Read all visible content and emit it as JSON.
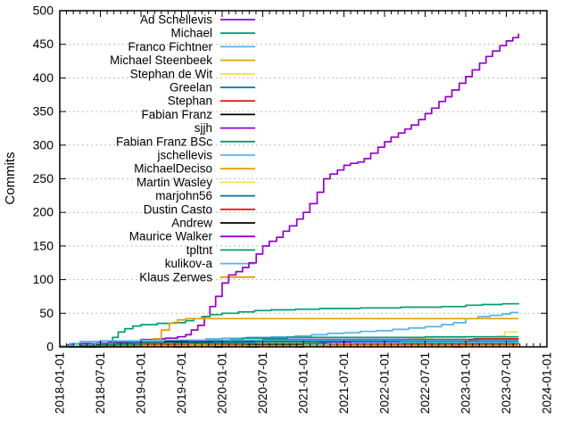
{
  "figure": {
    "background": "#ffffff",
    "frame_color": "#000000",
    "grid_color": "#bdbdbd"
  },
  "chart_data": {
    "type": "line",
    "style": "cumulative-commits-step-lines",
    "title": "",
    "xlabel": "",
    "ylabel": "Commits",
    "ylim": [
      0,
      500
    ],
    "ytick_labels": [
      "0",
      "50",
      "100",
      "150",
      "200",
      "250",
      "300",
      "350",
      "400",
      "450",
      "500"
    ],
    "ytick_values": [
      0,
      50,
      100,
      150,
      200,
      250,
      300,
      350,
      400,
      450,
      500
    ],
    "xlim_years": [
      2018.0,
      2024.0
    ],
    "xtick_labels": [
      "2018-01-01",
      "2018-07-01",
      "2019-01-01",
      "2019-07-01",
      "2020-01-01",
      "2020-07-01",
      "2021-01-01",
      "2021-07-01",
      "2022-01-01",
      "2022-07-01",
      "2023-01-01",
      "2023-07-01",
      "2024-01-01"
    ],
    "grid": "horizontal dotted lines at every 50 commits",
    "legend_position": "top-left inside plot, right-aligned labels with line swatches",
    "series": [
      {
        "name": "Ad Schellevis",
        "color": "#9400D3",
        "final_commits": 466,
        "points": [
          [
            2018.0,
            1
          ],
          [
            2018.1,
            3
          ],
          [
            2018.25,
            5
          ],
          [
            2018.45,
            6
          ],
          [
            2018.6,
            7
          ],
          [
            2018.8,
            8
          ],
          [
            2019.0,
            11
          ],
          [
            2019.15,
            12
          ],
          [
            2019.3,
            13
          ],
          [
            2019.45,
            15
          ],
          [
            2019.55,
            18
          ],
          [
            2019.62,
            25
          ],
          [
            2019.7,
            32
          ],
          [
            2019.78,
            45
          ],
          [
            2019.85,
            60
          ],
          [
            2019.92,
            75
          ],
          [
            2020.0,
            95
          ],
          [
            2020.08,
            107
          ],
          [
            2020.17,
            112
          ],
          [
            2020.25,
            118
          ],
          [
            2020.33,
            125
          ],
          [
            2020.42,
            138
          ],
          [
            2020.5,
            150
          ],
          [
            2020.58,
            157
          ],
          [
            2020.67,
            163
          ],
          [
            2020.75,
            172
          ],
          [
            2020.83,
            180
          ],
          [
            2020.92,
            190
          ],
          [
            2021.0,
            200
          ],
          [
            2021.08,
            213
          ],
          [
            2021.17,
            230
          ],
          [
            2021.25,
            250
          ],
          [
            2021.33,
            257
          ],
          [
            2021.42,
            263
          ],
          [
            2021.5,
            270
          ],
          [
            2021.58,
            273
          ],
          [
            2021.67,
            275
          ],
          [
            2021.75,
            280
          ],
          [
            2021.83,
            288
          ],
          [
            2021.92,
            297
          ],
          [
            2022.0,
            305
          ],
          [
            2022.08,
            312
          ],
          [
            2022.17,
            318
          ],
          [
            2022.25,
            324
          ],
          [
            2022.33,
            330
          ],
          [
            2022.42,
            338
          ],
          [
            2022.5,
            347
          ],
          [
            2022.58,
            355
          ],
          [
            2022.67,
            365
          ],
          [
            2022.75,
            372
          ],
          [
            2022.83,
            382
          ],
          [
            2022.92,
            392
          ],
          [
            2023.0,
            402
          ],
          [
            2023.08,
            412
          ],
          [
            2023.17,
            422
          ],
          [
            2023.25,
            432
          ],
          [
            2023.33,
            440
          ],
          [
            2023.42,
            448
          ],
          [
            2023.5,
            455
          ],
          [
            2023.58,
            460
          ],
          [
            2023.65,
            466
          ]
        ]
      },
      {
        "name": "Michael",
        "color": "#009E73",
        "final_commits": 65,
        "points": [
          [
            2018.0,
            0
          ],
          [
            2018.55,
            1
          ],
          [
            2018.65,
            14
          ],
          [
            2018.72,
            22
          ],
          [
            2018.8,
            27
          ],
          [
            2018.9,
            31
          ],
          [
            2019.0,
            33
          ],
          [
            2019.2,
            35
          ],
          [
            2019.4,
            36
          ],
          [
            2019.55,
            39
          ],
          [
            2019.65,
            42
          ],
          [
            2019.75,
            45
          ],
          [
            2019.85,
            48
          ],
          [
            2020.0,
            50
          ],
          [
            2020.2,
            52
          ],
          [
            2020.4,
            54
          ],
          [
            2020.6,
            55
          ],
          [
            2020.9,
            56
          ],
          [
            2021.2,
            57
          ],
          [
            2021.7,
            58
          ],
          [
            2022.2,
            59
          ],
          [
            2022.7,
            60
          ],
          [
            2023.0,
            62
          ],
          [
            2023.2,
            63
          ],
          [
            2023.45,
            64
          ],
          [
            2023.65,
            65
          ]
        ]
      },
      {
        "name": "Franco Fichtner",
        "color": "#56B4E9",
        "final_commits": 51,
        "points": [
          [
            2018.0,
            1
          ],
          [
            2018.15,
            3
          ],
          [
            2018.4,
            5
          ],
          [
            2018.7,
            6
          ],
          [
            2019.0,
            8
          ],
          [
            2019.4,
            10
          ],
          [
            2019.8,
            12
          ],
          [
            2020.0,
            13
          ],
          [
            2020.3,
            14
          ],
          [
            2020.6,
            15
          ],
          [
            2020.9,
            16
          ],
          [
            2021.1,
            18
          ],
          [
            2021.3,
            20
          ],
          [
            2021.5,
            21
          ],
          [
            2021.7,
            23
          ],
          [
            2021.9,
            24
          ],
          [
            2022.1,
            26
          ],
          [
            2022.3,
            28
          ],
          [
            2022.5,
            30
          ],
          [
            2022.7,
            33
          ],
          [
            2022.85,
            36
          ],
          [
            2023.0,
            42
          ],
          [
            2023.15,
            45
          ],
          [
            2023.3,
            47
          ],
          [
            2023.45,
            49
          ],
          [
            2023.55,
            51
          ],
          [
            2023.65,
            51
          ]
        ]
      },
      {
        "name": "Michael Steenbeek",
        "color": "#E69F00",
        "final_commits": 42,
        "points": [
          [
            2018.0,
            0
          ],
          [
            2018.95,
            1
          ],
          [
            2019.05,
            4
          ],
          [
            2019.15,
            12
          ],
          [
            2019.25,
            25
          ],
          [
            2019.35,
            35
          ],
          [
            2019.45,
            40
          ],
          [
            2019.55,
            42
          ],
          [
            2023.65,
            42
          ]
        ]
      },
      {
        "name": "Stephan de Wit",
        "color": "#F0E442",
        "final_commits": 22,
        "points": [
          [
            2018.0,
            0
          ],
          [
            2018.25,
            2
          ],
          [
            2018.6,
            3
          ],
          [
            2019.0,
            4
          ],
          [
            2019.6,
            5
          ],
          [
            2020.2,
            6
          ],
          [
            2020.8,
            8
          ],
          [
            2021.3,
            9
          ],
          [
            2021.8,
            10
          ],
          [
            2022.3,
            13
          ],
          [
            2022.6,
            14
          ],
          [
            2023.0,
            15
          ],
          [
            2023.4,
            16
          ],
          [
            2023.48,
            22
          ],
          [
            2023.65,
            22
          ]
        ]
      },
      {
        "name": "Greelan",
        "color": "#0072B2",
        "final_commits": 12,
        "points": [
          [
            2020.3,
            0
          ],
          [
            2020.45,
            3
          ],
          [
            2020.6,
            5
          ],
          [
            2020.8,
            7
          ],
          [
            2021.0,
            8
          ],
          [
            2021.4,
            9
          ],
          [
            2021.9,
            10
          ],
          [
            2022.5,
            11
          ],
          [
            2023.1,
            12
          ],
          [
            2023.65,
            12
          ]
        ]
      },
      {
        "name": "Stephan",
        "color": "#E51E10",
        "final_commits": 4,
        "points": [
          [
            2018.4,
            0
          ],
          [
            2018.5,
            2
          ],
          [
            2018.8,
            3
          ],
          [
            2019.5,
            4
          ],
          [
            2023.65,
            4
          ]
        ]
      },
      {
        "name": "Fabian Franz",
        "color": "#000000",
        "final_commits": 9,
        "points": [
          [
            2018.3,
            0
          ],
          [
            2018.45,
            3
          ],
          [
            2018.7,
            5
          ],
          [
            2019.0,
            6
          ],
          [
            2019.3,
            8
          ],
          [
            2020.5,
            8
          ],
          [
            2021.5,
            9
          ],
          [
            2023.65,
            9
          ]
        ]
      },
      {
        "name": "sjjh",
        "color": "#9400D3",
        "final_commits": 11,
        "points": [
          [
            2019.4,
            0
          ],
          [
            2019.5,
            6
          ],
          [
            2019.6,
            9
          ],
          [
            2019.8,
            10
          ],
          [
            2020.5,
            11
          ],
          [
            2023.65,
            11
          ]
        ]
      },
      {
        "name": "Fabian Franz BSc",
        "color": "#009E73",
        "final_commits": 15,
        "points": [
          [
            2019.9,
            0
          ],
          [
            2020.0,
            7
          ],
          [
            2020.1,
            11
          ],
          [
            2020.25,
            13
          ],
          [
            2020.8,
            14
          ],
          [
            2022.5,
            15
          ],
          [
            2023.65,
            15
          ]
        ]
      },
      {
        "name": "jschellevis",
        "color": "#56B4E9",
        "final_commits": 10,
        "points": [
          [
            2018.08,
            0
          ],
          [
            2018.12,
            5
          ],
          [
            2018.25,
            8
          ],
          [
            2018.5,
            9
          ],
          [
            2019.0,
            10
          ],
          [
            2023.65,
            10
          ]
        ]
      },
      {
        "name": "MichaelDeciso",
        "color": "#E69F00",
        "final_commits": 7,
        "points": [
          [
            2019.5,
            0
          ],
          [
            2019.6,
            3
          ],
          [
            2019.8,
            5
          ],
          [
            2020.1,
            6
          ],
          [
            2021.0,
            7
          ],
          [
            2023.65,
            7
          ]
        ]
      },
      {
        "name": "Martin Wasley",
        "color": "#F0E442",
        "final_commits": 6,
        "points": [
          [
            2018.1,
            0
          ],
          [
            2018.2,
            2
          ],
          [
            2018.5,
            4
          ],
          [
            2019.0,
            5
          ],
          [
            2020.0,
            6
          ],
          [
            2023.65,
            6
          ]
        ]
      },
      {
        "name": "marjohn56",
        "color": "#0072B2",
        "final_commits": 8,
        "points": [
          [
            2018.1,
            0
          ],
          [
            2018.25,
            2
          ],
          [
            2018.5,
            4
          ],
          [
            2018.9,
            5
          ],
          [
            2019.4,
            6
          ],
          [
            2019.9,
            7
          ],
          [
            2020.4,
            8
          ],
          [
            2023.65,
            8
          ]
        ]
      },
      {
        "name": "Dustin Casto",
        "color": "#E51E10",
        "final_commits": 12,
        "points": [
          [
            2022.85,
            0
          ],
          [
            2022.95,
            8
          ],
          [
            2023.05,
            11
          ],
          [
            2023.15,
            12
          ],
          [
            2023.65,
            12
          ]
        ]
      },
      {
        "name": "Andrew",
        "color": "#000000",
        "final_commits": 5,
        "points": [
          [
            2019.9,
            0
          ],
          [
            2020.0,
            2
          ],
          [
            2020.3,
            4
          ],
          [
            2021.0,
            5
          ],
          [
            2023.65,
            5
          ]
        ]
      },
      {
        "name": "Maurice Walker",
        "color": "#9400D3",
        "final_commits": 7,
        "points": [
          [
            2020.9,
            0
          ],
          [
            2021.0,
            3
          ],
          [
            2021.2,
            6
          ],
          [
            2021.5,
            7
          ],
          [
            2023.65,
            7
          ]
        ]
      },
      {
        "name": "tpltnt",
        "color": "#009E73",
        "final_commits": 5,
        "points": [
          [
            2018.2,
            0
          ],
          [
            2018.3,
            2
          ],
          [
            2018.6,
            4
          ],
          [
            2019.0,
            5
          ],
          [
            2023.65,
            5
          ]
        ]
      },
      {
        "name": "kulikov-a",
        "color": "#56B4E9",
        "final_commits": 7,
        "points": [
          [
            2020.9,
            0
          ],
          [
            2021.0,
            3
          ],
          [
            2021.3,
            5
          ],
          [
            2021.6,
            6
          ],
          [
            2022.2,
            7
          ],
          [
            2023.65,
            7
          ]
        ]
      },
      {
        "name": "Klaus Zerwes",
        "color": "#E69F00",
        "final_commits": 2,
        "points": [
          [
            2018.5,
            0
          ],
          [
            2018.6,
            1
          ],
          [
            2019.0,
            2
          ],
          [
            2023.65,
            2
          ]
        ]
      }
    ]
  }
}
